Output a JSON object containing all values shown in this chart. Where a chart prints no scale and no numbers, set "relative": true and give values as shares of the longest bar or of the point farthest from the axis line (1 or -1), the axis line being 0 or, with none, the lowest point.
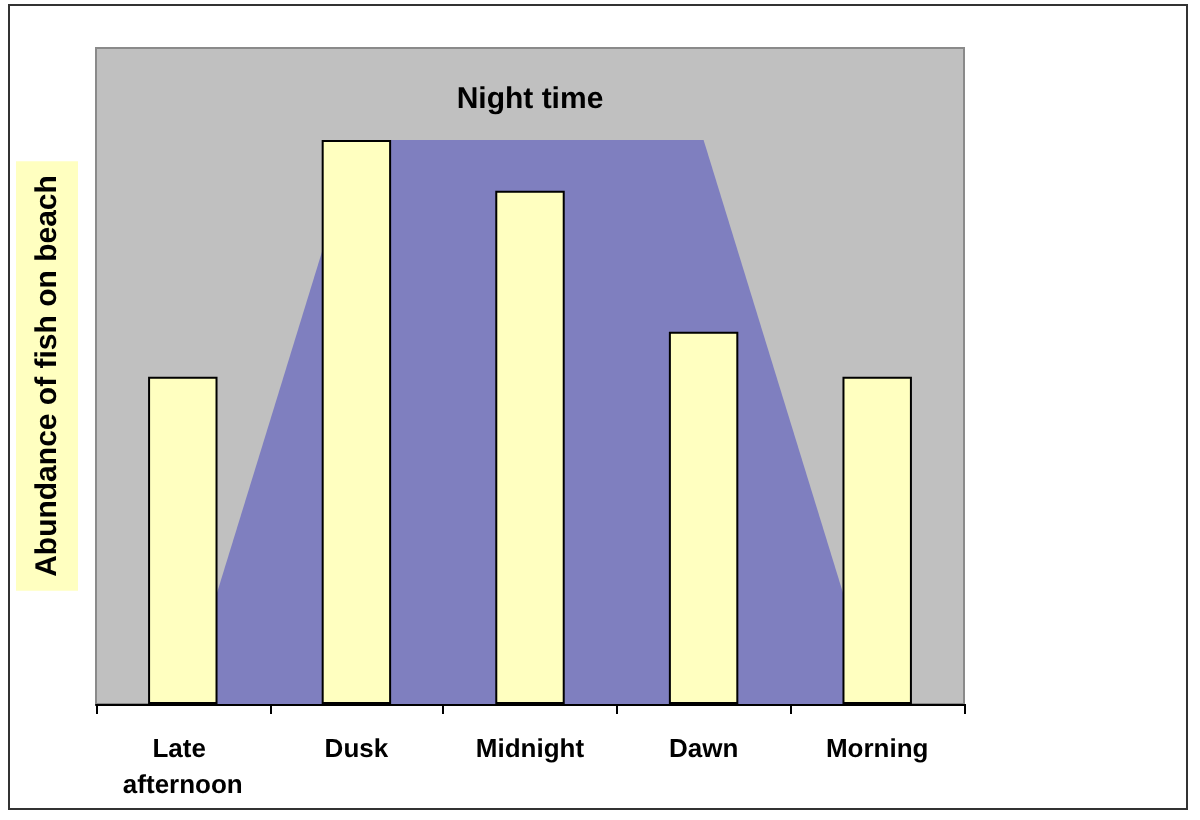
{
  "chart_data": {
    "type": "bar",
    "relative": true,
    "ylabel": "Abundance of fish on beach",
    "categories": [
      "Late afternoon",
      "Dusk",
      "Midnight",
      "Dawn",
      "Morning"
    ],
    "series": [
      {
        "values": [
          0.58,
          1,
          0.91,
          0.66,
          0.58
        ],
        "color": "#ffffc0"
      },
      {
        "type": "area",
        "name": "Night time",
        "color": "#7f7fbf",
        "values": [
          0,
          1,
          1,
          1,
          0
        ]
      }
    ]
  }
}
